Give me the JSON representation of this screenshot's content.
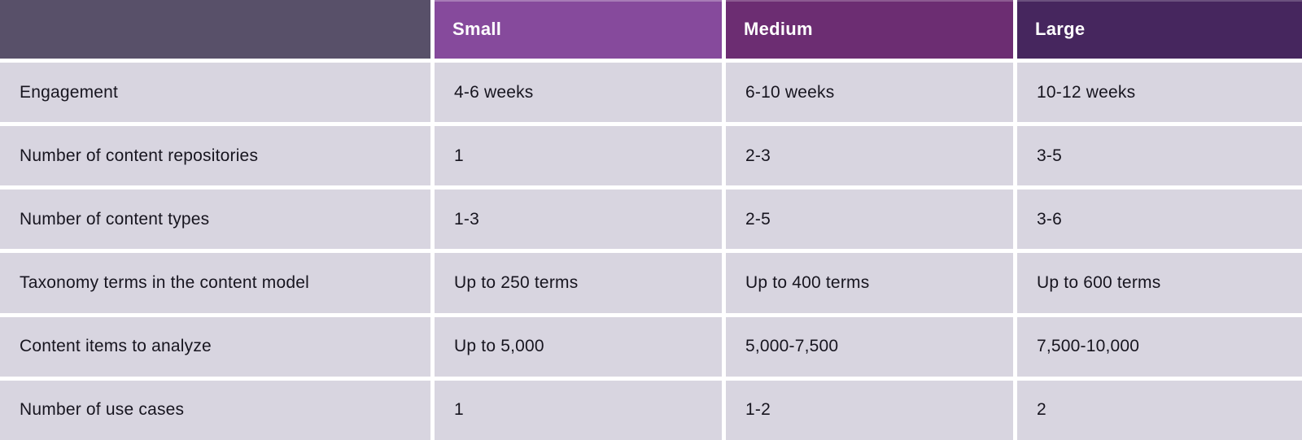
{
  "colors": {
    "header-dark-bg": "#585069",
    "small-bg": "#864A9C",
    "medium-bg": "#6C2D72",
    "large-bg": "#46265E",
    "row-bg": "#D8D5E0",
    "gap-color": "#FFFFFF",
    "text-color": "#17151F",
    "header-text": "#FFFFFF"
  },
  "table": {
    "header": {
      "corner": "",
      "columns": [
        {
          "label": "Small"
        },
        {
          "label": "Medium"
        },
        {
          "label": "Large"
        }
      ]
    },
    "rows": [
      {
        "label": "Engagement",
        "values": [
          "4-6 weeks",
          "6-10 weeks",
          "10-12 weeks"
        ]
      },
      {
        "label": "Number of content repositories",
        "values": [
          "1",
          "2-3",
          "3-5"
        ]
      },
      {
        "label": "Number of content types",
        "values": [
          "1-3",
          "2-5",
          "3-6"
        ]
      },
      {
        "label": "Taxonomy terms in the content model",
        "values": [
          "Up to 250 terms",
          "Up to 400 terms",
          "Up to 600 terms"
        ]
      },
      {
        "label": "Content items to analyze",
        "values": [
          "Up to 5,000",
          "5,000-7,500",
          "7,500-10,000"
        ]
      },
      {
        "label": "Number of use cases",
        "values": [
          "1",
          "1-2",
          "2"
        ]
      }
    ]
  },
  "chart_data": {
    "type": "table",
    "columns": [
      "",
      "Small",
      "Medium",
      "Large"
    ],
    "rows": [
      [
        "Engagement",
        "4-6 weeks",
        "6-10 weeks",
        "10-12 weeks"
      ],
      [
        "Number of content repositories",
        "1",
        "2-3",
        "3-5"
      ],
      [
        "Number of content types",
        "1-3",
        "2-5",
        "3-6"
      ],
      [
        "Taxonomy terms in the content model",
        "Up to 250 terms",
        "Up to 400 terms",
        "Up to 600 terms"
      ],
      [
        "Content items to analyze",
        "Up to 5,000",
        "5,000-7,500",
        "7,500-10,000"
      ],
      [
        "Number of use cases",
        "1",
        "1-2",
        "2"
      ]
    ]
  }
}
